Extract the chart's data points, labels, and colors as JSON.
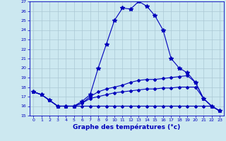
{
  "title": "Graphe des températures (°c)",
  "background_color": "#cce8f0",
  "grid_color": "#aac8d4",
  "line_color": "#0000bb",
  "xlim": [
    -0.5,
    23.5
  ],
  "ylim": [
    15,
    27
  ],
  "xticks": [
    0,
    1,
    2,
    3,
    4,
    5,
    6,
    7,
    8,
    9,
    10,
    11,
    12,
    13,
    14,
    15,
    16,
    17,
    18,
    19,
    20,
    21,
    22,
    23
  ],
  "yticks": [
    15,
    16,
    17,
    18,
    19,
    20,
    21,
    22,
    23,
    24,
    25,
    26,
    27
  ],
  "series": [
    {
      "x": [
        0,
        1,
        2,
        3,
        4,
        5,
        6,
        7,
        8,
        9,
        10,
        11,
        12,
        13,
        14,
        15,
        16,
        17,
        18,
        19,
        20,
        21,
        22,
        23
      ],
      "y": [
        17.5,
        17.2,
        16.6,
        16.0,
        16.0,
        16.0,
        16.5,
        17.2,
        20.0,
        22.5,
        25.0,
        26.3,
        26.2,
        27.0,
        26.5,
        25.5,
        24.0,
        21.0,
        20.0,
        19.5,
        18.5,
        16.8,
        16.0,
        15.5
      ],
      "marker": "*",
      "markersize": 4
    },
    {
      "x": [
        0,
        1,
        2,
        3,
        4,
        5,
        6,
        7,
        8,
        9,
        10,
        11,
        12,
        13,
        14,
        15,
        16,
        17,
        18,
        19,
        20,
        21,
        22,
        23
      ],
      "y": [
        17.5,
        17.2,
        16.6,
        16.0,
        16.0,
        16.0,
        16.3,
        17.0,
        17.5,
        17.8,
        18.0,
        18.2,
        18.5,
        18.7,
        18.8,
        18.8,
        18.9,
        19.0,
        19.1,
        19.2,
        18.5,
        16.8,
        16.0,
        15.5
      ],
      "marker": "D",
      "markersize": 2
    },
    {
      "x": [
        0,
        1,
        2,
        3,
        4,
        5,
        6,
        7,
        8,
        9,
        10,
        11,
        12,
        13,
        14,
        15,
        16,
        17,
        18,
        19,
        20,
        21,
        22,
        23
      ],
      "y": [
        17.5,
        17.2,
        16.6,
        16.0,
        16.0,
        16.0,
        16.3,
        16.8,
        17.0,
        17.2,
        17.4,
        17.5,
        17.6,
        17.7,
        17.8,
        17.8,
        17.9,
        17.9,
        18.0,
        18.0,
        18.0,
        16.8,
        16.0,
        15.5
      ],
      "marker": "D",
      "markersize": 2
    },
    {
      "x": [
        0,
        1,
        2,
        3,
        4,
        5,
        6,
        7,
        8,
        9,
        10,
        11,
        12,
        13,
        14,
        15,
        16,
        17,
        18,
        19,
        20,
        21,
        22,
        23
      ],
      "y": [
        17.5,
        17.2,
        16.6,
        16.0,
        16.0,
        16.0,
        16.0,
        16.0,
        16.0,
        16.0,
        16.0,
        16.0,
        16.0,
        16.0,
        16.0,
        16.0,
        16.0,
        16.0,
        16.0,
        16.0,
        16.0,
        16.0,
        16.0,
        15.5
      ],
      "marker": "D",
      "markersize": 2
    }
  ]
}
